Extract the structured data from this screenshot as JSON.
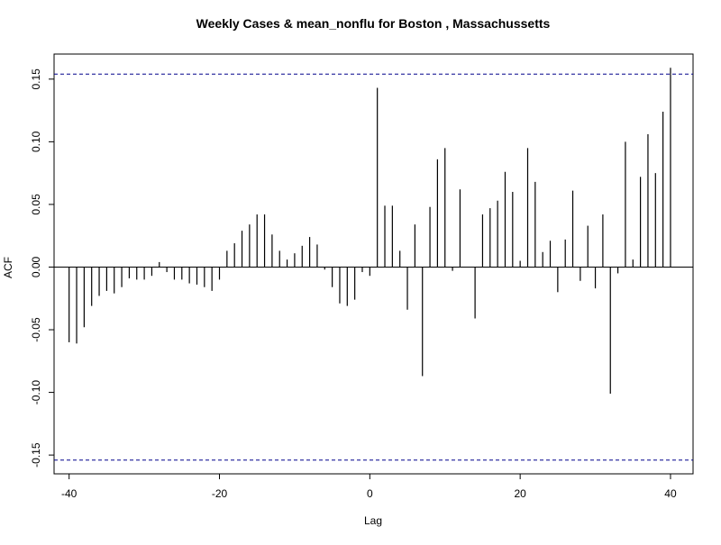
{
  "chart_data": {
    "type": "bar",
    "title": "Weekly Cases & mean_nonflu for Boston , Massachussetts",
    "xlabel": "Lag",
    "ylabel": "ACF",
    "xlim": [
      -42,
      43
    ],
    "ylim": [
      -0.165,
      0.17
    ],
    "x_ticks": [
      -40,
      -20,
      0,
      20,
      40
    ],
    "y_ticks": [
      -0.15,
      -0.1,
      -0.05,
      0.0,
      0.05,
      0.1,
      0.15
    ],
    "y_tick_labels": [
      "-0.15",
      "-0.10",
      "-0.05",
      "0.00",
      "0.05",
      "0.10",
      "0.15"
    ],
    "confidence_bound": 0.154,
    "confidence_color": "#00008b",
    "x": [
      -40,
      -39,
      -38,
      -37,
      -36,
      -35,
      -34,
      -33,
      -32,
      -31,
      -30,
      -29,
      -28,
      -27,
      -26,
      -25,
      -24,
      -23,
      -22,
      -21,
      -20,
      -19,
      -18,
      -17,
      -16,
      -15,
      -14,
      -13,
      -12,
      -11,
      -10,
      -9,
      -8,
      -7,
      -6,
      -5,
      -4,
      -3,
      -2,
      -1,
      0,
      1,
      2,
      3,
      4,
      5,
      6,
      7,
      8,
      9,
      10,
      11,
      12,
      13,
      14,
      15,
      16,
      17,
      18,
      19,
      20,
      21,
      22,
      23,
      24,
      25,
      26,
      27,
      28,
      29,
      30,
      31,
      32,
      33,
      34,
      35,
      36,
      37,
      38,
      39,
      40
    ],
    "values": [
      -0.06,
      -0.061,
      -0.048,
      -0.031,
      -0.023,
      -0.019,
      -0.021,
      -0.016,
      -0.009,
      -0.01,
      -0.01,
      -0.007,
      0.004,
      -0.004,
      -0.01,
      -0.01,
      -0.013,
      -0.014,
      -0.016,
      -0.019,
      -0.01,
      0.013,
      0.019,
      0.029,
      0.034,
      0.042,
      0.042,
      0.026,
      0.013,
      0.006,
      0.011,
      0.017,
      0.024,
      0.018,
      -0.002,
      -0.016,
      -0.029,
      -0.031,
      -0.026,
      -0.004,
      -0.007,
      0.143,
      0.049,
      0.049,
      0.013,
      -0.034,
      0.034,
      -0.087,
      0.048,
      0.086,
      0.095,
      -0.003,
      0.062,
      0.0,
      -0.041,
      0.042,
      0.047,
      0.053,
      0.076,
      0.06,
      0.005,
      0.095,
      0.068,
      0.012,
      0.021,
      -0.02,
      0.022,
      0.061,
      -0.011,
      0.033,
      -0.017,
      0.042,
      -0.101,
      -0.005,
      0.1,
      0.006,
      0.072,
      0.106,
      0.075,
      0.124,
      0.159
    ]
  }
}
